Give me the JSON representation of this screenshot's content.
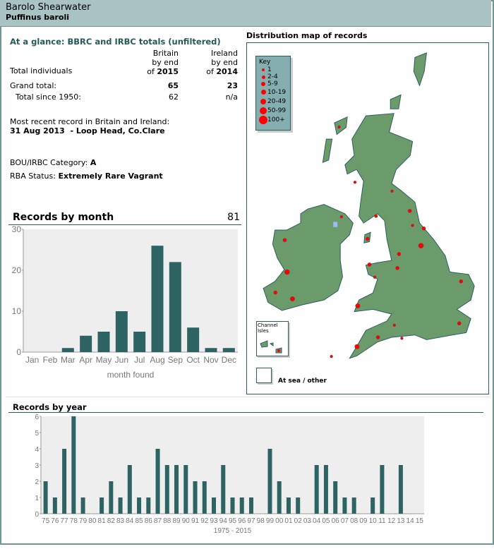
{
  "header": {
    "title": "Barolo Shearwater",
    "subtitle": "Puffinus baroli"
  },
  "glance": {
    "title": "At a glance: BBRC and IRBC totals (unfiltered)",
    "row_label": "Total individuals",
    "col_britain": {
      "l1": "Britain",
      "l2": "by end",
      "l3": "of ",
      "year": "2015"
    },
    "col_ireland": {
      "l1": "Ireland",
      "l2": "by end",
      "l3": "of ",
      "year": "2014"
    },
    "grand_label": "Grand total:",
    "grand_britain": "65",
    "grand_ireland": "23",
    "since_label": "Total since 1950:",
    "since_britain": "62",
    "since_ireland": "n/a",
    "recent_label": "Most recent record in Britain and Ireland:",
    "recent_value": "31 Aug 2013  - Loop Head, Co.Clare",
    "category_label": "BOU/IRBC Category: ",
    "category_value": "A",
    "rba_label": "RBA Status: ",
    "rba_value": "Extremely Rare Vagrant"
  },
  "map": {
    "title": "Distribution map of records",
    "key_title": "Key",
    "key": [
      "1",
      "2-4",
      "5-9",
      "10-19",
      "20-49",
      "50-99",
      "100+"
    ],
    "channel_label": "Channel Isles",
    "sea_label": "At sea / other",
    "land_color": "#6b9a6b",
    "dot_color": "#ff0000"
  },
  "chart_data": [
    {
      "type": "bar",
      "title": "Records by month",
      "total": "81",
      "xlabel": "month found",
      "ylabel": "",
      "categories": [
        "Jan",
        "Feb",
        "Mar",
        "Apr",
        "May",
        "Jun",
        "Jul",
        "Aug",
        "Sep",
        "Oct",
        "Nov",
        "Dec"
      ],
      "values": [
        0,
        0,
        1,
        4,
        5,
        10,
        5,
        26,
        22,
        6,
        1,
        1
      ],
      "ylim": [
        0,
        30
      ],
      "yticks": [
        "0",
        "10",
        "20",
        "30"
      ],
      "color": "#2d6363"
    },
    {
      "type": "bar",
      "title": "Records by year",
      "xlabel": "1975 - 2015",
      "ylabel": "",
      "categories": [
        "75",
        "76",
        "77",
        "78",
        "79",
        "80",
        "81",
        "82",
        "83",
        "84",
        "85",
        "86",
        "87",
        "88",
        "89",
        "90",
        "91",
        "92",
        "93",
        "94",
        "95",
        "96",
        "97",
        "98",
        "99",
        "00",
        "01",
        "02",
        "03",
        "04",
        "05",
        "06",
        "07",
        "08",
        "09",
        "10",
        "11",
        "12",
        "13",
        "14",
        "15"
      ],
      "values": [
        2,
        1,
        4,
        6,
        1,
        0,
        1,
        2,
        1,
        3,
        1,
        1,
        4,
        3,
        3,
        3,
        2,
        2,
        1,
        3,
        1,
        1,
        1,
        0,
        4,
        2,
        1,
        1,
        0,
        3,
        3,
        2,
        1,
        1,
        0,
        1,
        3,
        0,
        3,
        0,
        0
      ],
      "ylim": [
        0,
        6
      ],
      "yticks": [
        "0",
        "1",
        "2",
        "3",
        "4",
        "5",
        "6"
      ],
      "color": "#2d6363"
    }
  ]
}
